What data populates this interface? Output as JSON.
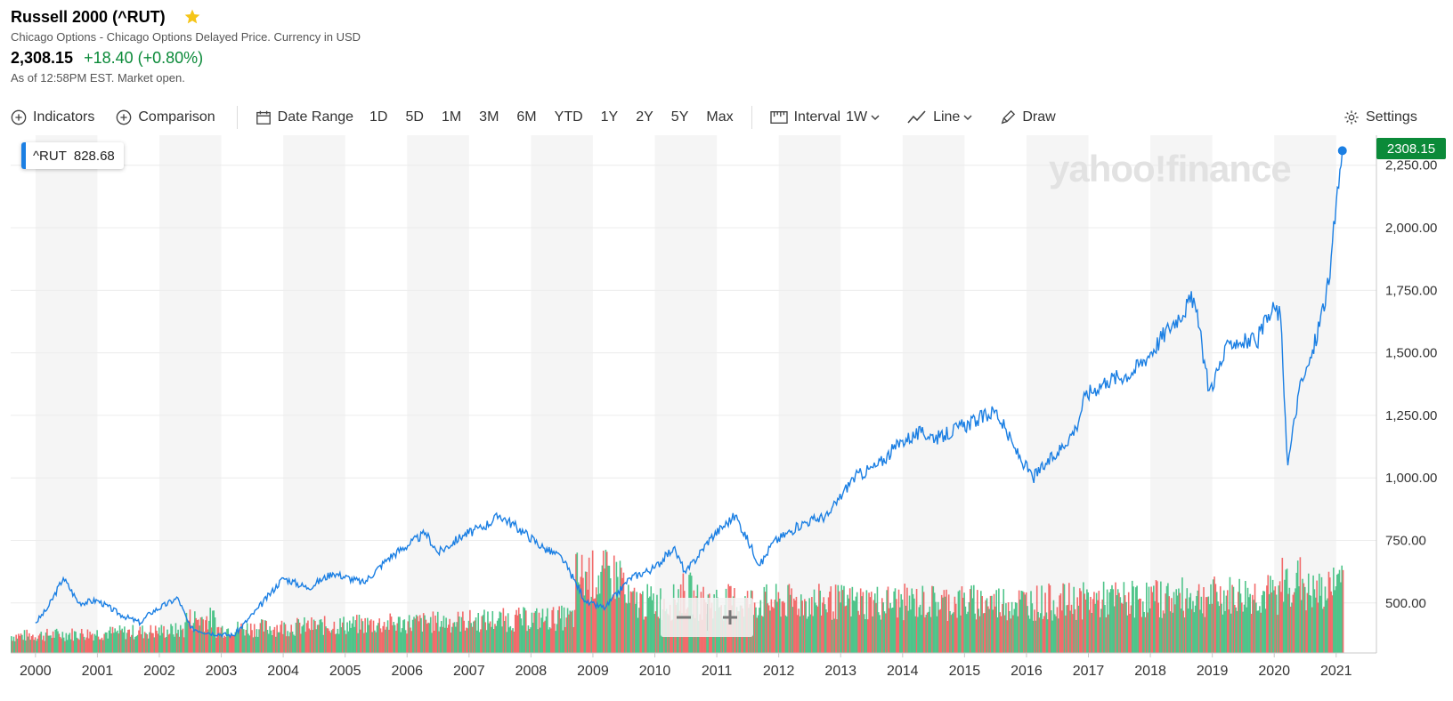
{
  "header": {
    "title": "Russell 2000 (^RUT)",
    "subtitle": "Chicago Options - Chicago Options Delayed Price. Currency in USD",
    "price": "2,308.15",
    "change": "+18.40 (+0.80%)",
    "as_of": "As of 12:58PM EST. Market open."
  },
  "toolbar": {
    "indicators": "Indicators",
    "comparison": "Comparison",
    "date_range": "Date Range",
    "ranges": [
      "1D",
      "5D",
      "1M",
      "3M",
      "6M",
      "YTD",
      "1Y",
      "2Y",
      "5Y",
      "Max"
    ],
    "interval_label": "Interval",
    "interval_value": "1W",
    "chart_type": "Line",
    "draw": "Draw",
    "settings": "Settings"
  },
  "tooltip": {
    "symbol": "^RUT",
    "value": "828.68"
  },
  "last_price_label": "2308.15",
  "watermark": "yahoo!finance",
  "colors": {
    "line": "#1b7fe3",
    "up_volume": "#4fc48a",
    "down_volume": "#f26b6b",
    "positive": "#0b8a39",
    "star": "#f5c518"
  },
  "chart_data": {
    "type": "line",
    "title": "Russell 2000 (^RUT)",
    "series": [
      {
        "name": "^RUT",
        "x": [
          2000.0,
          2000.2,
          2000.45,
          2000.7,
          2001.0,
          2001.4,
          2001.7,
          2001.85,
          2002.3,
          2002.5,
          2002.8,
          2003.2,
          2003.6,
          2004.0,
          2004.4,
          2004.8,
          2005.3,
          2005.7,
          2006.3,
          2006.5,
          2006.9,
          2007.2,
          2007.5,
          2007.9,
          2008.2,
          2008.5,
          2008.9,
          2009.2,
          2009.6,
          2010.0,
          2010.3,
          2010.5,
          2010.9,
          2011.3,
          2011.7,
          2011.9,
          2012.4,
          2012.8,
          2013.2,
          2013.6,
          2014.0,
          2014.3,
          2014.6,
          2014.9,
          2015.2,
          2015.5,
          2015.8,
          2016.1,
          2016.5,
          2016.8,
          2016.95,
          2017.3,
          2017.7,
          2018.0,
          2018.3,
          2018.7,
          2018.95,
          2019.3,
          2019.7,
          2020.0,
          2020.1,
          2020.22,
          2020.4,
          2020.6,
          2020.9,
          2021.0,
          2021.1
        ],
        "y": [
          420,
          480,
          600,
          500,
          510,
          450,
          420,
          460,
          520,
          400,
          380,
          370,
          480,
          600,
          560,
          620,
          580,
          680,
          780,
          700,
          770,
          800,
          850,
          780,
          720,
          680,
          500,
          480,
          600,
          640,
          720,
          620,
          760,
          850,
          650,
          740,
          820,
          850,
          1000,
          1050,
          1150,
          1180,
          1160,
          1200,
          1230,
          1270,
          1120,
          1000,
          1100,
          1200,
          1330,
          1390,
          1420,
          1500,
          1600,
          1720,
          1350,
          1550,
          1540,
          1680,
          1650,
          1050,
          1350,
          1480,
          1800,
          2100,
          2308.15
        ]
      }
    ],
    "volume_pattern": "weekly bars, green for up weeks and red for down weeks",
    "xlabel": "",
    "ylabel": "",
    "x_ticks": [
      "2000",
      "2001",
      "2002",
      "2003",
      "2004",
      "2005",
      "2006",
      "2007",
      "2008",
      "2009",
      "2010",
      "2011",
      "2012",
      "2013",
      "2014",
      "2015",
      "2016",
      "2017",
      "2018",
      "2019",
      "2020",
      "2021"
    ],
    "y_ticks": [
      "500.00",
      "750.00",
      "1,000.00",
      "1,250.00",
      "1,500.00",
      "1,750.00",
      "2,000.00",
      "2,250.00"
    ],
    "xlim": [
      1999.6,
      2021.65
    ],
    "ylim": [
      300,
      2370
    ],
    "grid": true,
    "shaded_alternate_years": true
  }
}
